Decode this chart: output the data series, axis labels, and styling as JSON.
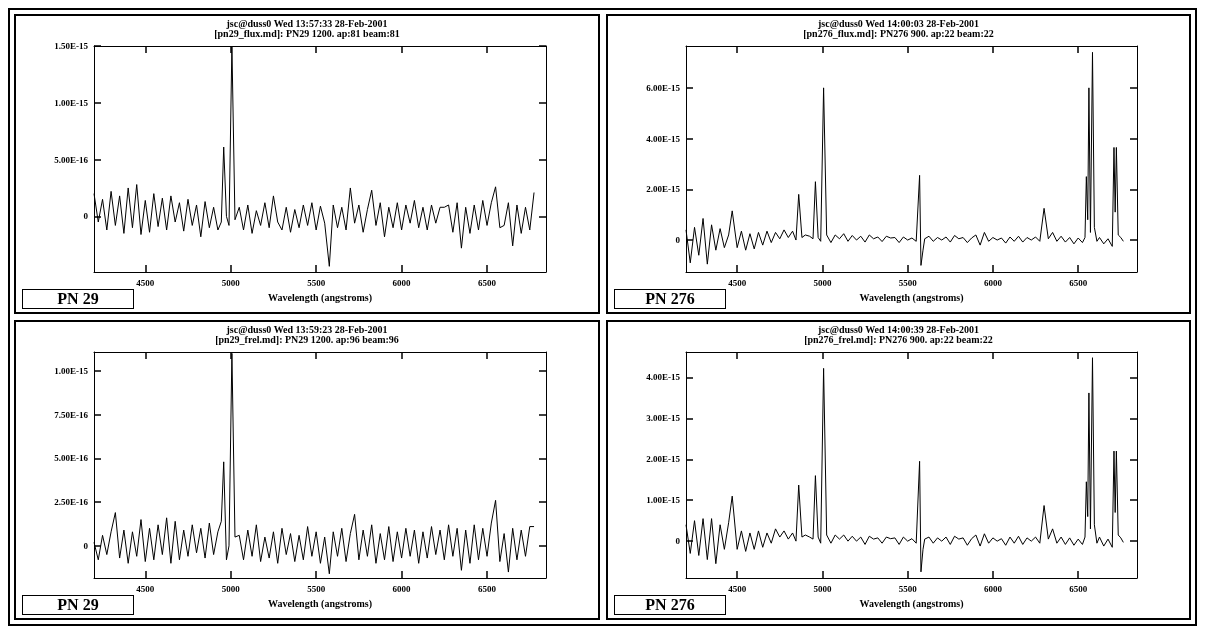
{
  "chart_data": [
    {
      "type": "line",
      "title": "jsc@duss0 Wed 13:57:33 28-Feb-2001",
      "subtitle": "[pn29_flux.md]: PN29 1200. ap:81 beam:81",
      "xlabel": "Wavelength (angstroms)",
      "annotations": [
        "PN 29"
      ],
      "color": "#000000",
      "xlim": [
        4200,
        6845
      ],
      "ylim": [
        -4.9e-16,
        1.5e-15
      ],
      "xticks": [
        4500,
        5000,
        5500,
        6000,
        6500
      ],
      "yticks": [
        {
          "value": 0,
          "label": "0"
        },
        {
          "value": 5e-16,
          "label": "5.00E-16"
        },
        {
          "value": 1e-15,
          "label": "1.00E-15"
        },
        {
          "value": 1.5e-15,
          "label": "1.50E-15"
        }
      ],
      "grid": false,
      "x": [
        4200,
        4225,
        4250,
        4275,
        4300,
        4325,
        4350,
        4375,
        4400,
        4425,
        4450,
        4475,
        4500,
        4525,
        4550,
        4575,
        4600,
        4625,
        4650,
        4675,
        4700,
        4725,
        4750,
        4775,
        4800,
        4825,
        4850,
        4875,
        4900,
        4925,
        4945,
        4959,
        4975,
        4990,
        5007,
        5025,
        5050,
        5075,
        5100,
        5125,
        5150,
        5175,
        5200,
        5225,
        5250,
        5275,
        5300,
        5325,
        5350,
        5375,
        5400,
        5425,
        5450,
        5475,
        5500,
        5525,
        5550,
        5577,
        5600,
        5625,
        5650,
        5675,
        5700,
        5725,
        5750,
        5775,
        5800,
        5825,
        5850,
        5875,
        5900,
        5925,
        5950,
        5975,
        6000,
        6025,
        6050,
        6075,
        6100,
        6125,
        6150,
        6175,
        6200,
        6225,
        6250,
        6275,
        6300,
        6325,
        6350,
        6375,
        6400,
        6425,
        6450,
        6475,
        6500,
        6525,
        6550,
        6575,
        6600,
        6625,
        6650,
        6675,
        6700,
        6725,
        6750,
        6775
      ],
      "values": [
        2e-16,
        -5e-17,
        1.5e-16,
        -1.2e-16,
        2.2e-16,
        -8e-17,
        1.8e-16,
        -1.5e-16,
        2.5e-16,
        -1e-16,
        2.8e-16,
        -1.6e-16,
        1.4e-16,
        -1.4e-16,
        2e-16,
        -9e-17,
        1.6e-16,
        -1.2e-16,
        1.8e-16,
        -5e-17,
        1.2e-16,
        -1.3e-16,
        1.5e-16,
        -8e-17,
        1e-16,
        -1.8e-16,
        1.3e-16,
        -1e-16,
        8e-17,
        -1.2e-16,
        -5e-17,
        6.1e-16,
        0,
        -8e-17,
        1.5e-15,
        -3e-17,
        8e-17,
        -1.2e-16,
        1e-16,
        -1.5e-16,
        5e-17,
        -8e-17,
        1.2e-16,
        -1e-16,
        1.8e-16,
        -5e-17,
        -1.2e-16,
        8e-17,
        -1.4e-16,
        6e-17,
        -1e-16,
        1e-16,
        -8e-17,
        1.2e-16,
        -1.2e-16,
        9e-17,
        -6e-17,
        -4.4e-16,
        1e-16,
        -1e-16,
        8e-17,
        -1.2e-16,
        2.5e-16,
        -6e-17,
        1e-16,
        -1.4e-16,
        6e-17,
        2.3e-16,
        -8e-17,
        1.2e-16,
        -1.8e-16,
        8e-17,
        -1e-16,
        1.2e-16,
        -1.2e-16,
        1e-16,
        -6e-17,
        1.4e-16,
        -1e-16,
        8e-17,
        -1.2e-16,
        1e-16,
        -6e-17,
        8e-17,
        8e-17,
        1e-16,
        -1.4e-16,
        1.2e-16,
        -2.8e-16,
        8e-17,
        -1.5e-16,
        1e-16,
        -1.2e-16,
        1.4e-16,
        -8e-17,
        1.2e-16,
        2.6e-16,
        -1e-16,
        -8e-17,
        1.2e-16,
        -2.6e-16,
        1e-16,
        -1.5e-16,
        8e-17,
        -1.2e-16,
        2.1e-16
      ]
    },
    {
      "type": "line",
      "title": "jsc@duss0 Wed 14:00:03 28-Feb-2001",
      "subtitle": "[pn276_flux.md]: PN276 900. ap:22 beam:22",
      "xlabel": "Wavelength (angstroms)",
      "annotations": [
        "PN 276"
      ],
      "color": "#000000",
      "xlim": [
        4200,
        6845
      ],
      "ylim": [
        -1.26e-15,
        7.65e-15
      ],
      "xticks": [
        4500,
        5000,
        5500,
        6000,
        6500
      ],
      "yticks": [
        {
          "value": 0,
          "label": "0"
        },
        {
          "value": 2e-15,
          "label": "2.00E-15"
        },
        {
          "value": 4e-15,
          "label": "4.00E-15"
        },
        {
          "value": 6e-15,
          "label": "6.00E-15"
        }
      ],
      "grid": false,
      "x": [
        4200,
        4225,
        4250,
        4275,
        4300,
        4325,
        4350,
        4375,
        4400,
        4425,
        4450,
        4471,
        4500,
        4525,
        4550,
        4575,
        4600,
        4625,
        4650,
        4675,
        4700,
        4725,
        4750,
        4775,
        4800,
        4825,
        4845,
        4861,
        4880,
        4900,
        4925,
        4945,
        4959,
        4975,
        4990,
        5007,
        5025,
        5050,
        5075,
        5100,
        5125,
        5150,
        5175,
        5200,
        5225,
        5250,
        5275,
        5300,
        5325,
        5350,
        5375,
        5400,
        5425,
        5450,
        5475,
        5500,
        5525,
        5550,
        5570,
        5578,
        5590,
        5600,
        5625,
        5650,
        5675,
        5700,
        5725,
        5750,
        5775,
        5800,
        5825,
        5850,
        5875,
        5900,
        5925,
        5950,
        5975,
        6000,
        6025,
        6050,
        6075,
        6100,
        6125,
        6150,
        6175,
        6200,
        6225,
        6250,
        6275,
        6300,
        6325,
        6350,
        6375,
        6400,
        6425,
        6450,
        6475,
        6500,
        6525,
        6540,
        6548,
        6556,
        6563,
        6572,
        6584,
        6595,
        6610,
        6625,
        6650,
        6675,
        6700,
        6710,
        6717,
        6724,
        6735,
        6750,
        6765
      ],
      "values": [
        4e-16,
        -9e-16,
        5e-16,
        -6e-16,
        8.5e-16,
        -9.5e-16,
        6e-16,
        -4e-16,
        4.5e-16,
        -3e-16,
        2e-16,
        1.15e-15,
        -3e-16,
        3.5e-16,
        -4e-16,
        2.5e-16,
        -3.5e-16,
        3e-16,
        -2e-16,
        3.5e-16,
        -1e-16,
        3e-16,
        5e-17,
        4e-16,
        1e-16,
        3.5e-16,
        0,
        1.8e-15,
        1e-16,
        2e-16,
        1.5e-16,
        5e-17,
        2.3e-15,
        1e-16,
        -5e-17,
        6e-15,
        2e-16,
        -1e-16,
        2e-16,
        5e-17,
        2.5e-16,
        -5e-17,
        1.8e-16,
        0,
        1.5e-16,
        -8e-17,
        2e-16,
        5e-17,
        1.2e-16,
        -6e-17,
        1.5e-16,
        8e-17,
        1e-16,
        -1e-16,
        1.2e-16,
        0,
        8e-17,
        -5e-17,
        2.55e-15,
        -1e-15,
        -4e-16,
        5e-17,
        1.5e-16,
        -5e-17,
        1e-16,
        0,
        1.2e-16,
        -8e-17,
        1.8e-16,
        5e-17,
        1e-16,
        -1e-16,
        8e-17,
        2e-16,
        -2e-16,
        3e-16,
        -5e-17,
        1e-16,
        0,
        8e-17,
        -1.2e-16,
        1.2e-16,
        -5e-17,
        1.5e-16,
        -8e-17,
        1e-16,
        0,
        1.2e-16,
        -5e-17,
        1.25e-15,
        5e-17,
        3e-16,
        -5e-17,
        1.5e-16,
        -8e-17,
        1e-16,
        -1.5e-16,
        8e-17,
        -1e-16,
        1e-16,
        2.5e-15,
        8e-16,
        6e-15,
        3e-16,
        7.4e-15,
        5e-16,
        -5e-17,
        1e-16,
        -1.5e-16,
        5e-17,
        -2.5e-16,
        3.65e-15,
        1.1e-15,
        3.65e-15,
        2e-16,
        1e-16,
        -5e-17
      ]
    },
    {
      "type": "line",
      "title": "jsc@duss0 Wed 13:59:23 28-Feb-2001",
      "subtitle": "[pn29_frel.md]: PN29 1200. ap:96 beam:96",
      "xlabel": "Wavelength (angstroms)",
      "annotations": [
        "PN 29"
      ],
      "color": "#000000",
      "xlim": [
        4200,
        6845
      ],
      "ylim": [
        -1.84e-16,
        1.108e-15
      ],
      "xticks": [
        4500,
        5000,
        5500,
        6000,
        6500
      ],
      "yticks": [
        {
          "value": 0,
          "label": "0"
        },
        {
          "value": 2.5e-16,
          "label": "2.50E-16"
        },
        {
          "value": 5e-16,
          "label": "5.00E-16"
        },
        {
          "value": 7.5e-16,
          "label": "7.50E-16"
        },
        {
          "value": 1e-15,
          "label": "1.00E-15"
        }
      ],
      "grid": false,
      "x": [
        4200,
        4225,
        4250,
        4275,
        4300,
        4325,
        4350,
        4375,
        4400,
        4425,
        4450,
        4475,
        4500,
        4525,
        4550,
        4575,
        4600,
        4625,
        4650,
        4675,
        4700,
        4725,
        4750,
        4775,
        4800,
        4825,
        4850,
        4875,
        4900,
        4925,
        4945,
        4959,
        4975,
        4990,
        5007,
        5025,
        5050,
        5075,
        5100,
        5125,
        5150,
        5175,
        5200,
        5225,
        5250,
        5275,
        5300,
        5325,
        5350,
        5375,
        5400,
        5425,
        5450,
        5475,
        5500,
        5525,
        5550,
        5577,
        5600,
        5625,
        5650,
        5675,
        5700,
        5725,
        5750,
        5775,
        5800,
        5825,
        5850,
        5875,
        5900,
        5925,
        5950,
        5975,
        6000,
        6025,
        6050,
        6075,
        6100,
        6125,
        6150,
        6175,
        6200,
        6225,
        6250,
        6275,
        6300,
        6325,
        6350,
        6375,
        6400,
        6425,
        6450,
        6475,
        6500,
        6525,
        6550,
        6575,
        6600,
        6625,
        6650,
        6675,
        6700,
        6725,
        6750,
        6775
      ],
      "values": [
        2e-17,
        -8e-17,
        6e-17,
        -5e-17,
        8e-17,
        1.9e-16,
        -7e-17,
        9e-17,
        -1e-16,
        8e-17,
        -6e-17,
        1.5e-16,
        -9e-17,
        1e-16,
        -8e-17,
        1.2e-16,
        -5e-17,
        1.6e-16,
        -1e-16,
        1.4e-16,
        -8e-17,
        9e-17,
        -6e-17,
        1.2e-16,
        -4e-17,
        1e-16,
        -7e-17,
        1.3e-16,
        -5e-17,
        8e-17,
        1.4e-16,
        4.8e-16,
        -8e-17,
        0,
        1.1e-15,
        5e-17,
        6e-17,
        -8e-17,
        9e-17,
        -6e-17,
        1.2e-16,
        -9e-17,
        5e-17,
        -7e-17,
        8e-17,
        -1e-16,
        1e-16,
        -5e-17,
        7e-17,
        -9e-17,
        6e-17,
        -8e-17,
        1.1e-16,
        -6e-17,
        8e-17,
        -1e-16,
        5e-17,
        -1.6e-16,
        8e-17,
        -6e-17,
        1e-16,
        -9e-17,
        7e-17,
        1.8e-16,
        -8e-17,
        9e-17,
        -6e-17,
        1.2e-16,
        -1e-16,
        7e-17,
        -8e-17,
        1.1e-16,
        -9e-17,
        8e-17,
        -7e-17,
        1e-16,
        -6e-17,
        9e-17,
        -1e-16,
        8e-17,
        -7e-17,
        1.1e-16,
        -5e-17,
        9e-17,
        -8e-17,
        1.2e-16,
        -6e-17,
        1e-16,
        -1.4e-16,
        9e-17,
        -1e-16,
        1.2e-16,
        -8e-17,
        1e-16,
        -6e-17,
        1.3e-16,
        2.6e-16,
        -9e-17,
        7e-17,
        -1.5e-16,
        1e-16,
        -8e-17,
        9e-17,
        -6e-17,
        1.1e-16,
        1.1e-16
      ]
    },
    {
      "type": "line",
      "title": "jsc@duss0 Wed 14:00:39 28-Feb-2001",
      "subtitle": "[pn276_frel.md]: PN276 900. ap:22 beam:22",
      "xlabel": "Wavelength (angstroms)",
      "annotations": [
        "PN 276"
      ],
      "color": "#000000",
      "xlim": [
        4200,
        6845
      ],
      "ylim": [
        -9e-16,
        4.62e-15
      ],
      "xticks": [
        4500,
        5000,
        5500,
        6000,
        6500
      ],
      "yticks": [
        {
          "value": 0,
          "label": "0"
        },
        {
          "value": 1e-15,
          "label": "1.00E-15"
        },
        {
          "value": 2e-15,
          "label": "2.00E-15"
        },
        {
          "value": 3e-15,
          "label": "3.00E-15"
        },
        {
          "value": 4e-15,
          "label": "4.00E-15"
        }
      ],
      "grid": false,
      "x": [
        4200,
        4225,
        4250,
        4275,
        4300,
        4325,
        4350,
        4375,
        4400,
        4425,
        4450,
        4471,
        4500,
        4525,
        4550,
        4575,
        4600,
        4625,
        4650,
        4675,
        4700,
        4725,
        4750,
        4775,
        4800,
        4825,
        4845,
        4861,
        4880,
        4900,
        4925,
        4945,
        4959,
        4975,
        4990,
        5007,
        5025,
        5050,
        5075,
        5100,
        5125,
        5150,
        5175,
        5200,
        5225,
        5250,
        5275,
        5300,
        5325,
        5350,
        5375,
        5400,
        5425,
        5450,
        5475,
        5500,
        5525,
        5550,
        5570,
        5578,
        5590,
        5600,
        5625,
        5650,
        5675,
        5700,
        5725,
        5750,
        5775,
        5800,
        5825,
        5850,
        5875,
        5900,
        5925,
        5950,
        5975,
        6000,
        6025,
        6050,
        6075,
        6100,
        6125,
        6150,
        6175,
        6200,
        6225,
        6250,
        6275,
        6300,
        6325,
        6350,
        6375,
        6400,
        6425,
        6450,
        6475,
        6500,
        6525,
        6540,
        6548,
        6556,
        6563,
        6572,
        6584,
        6595,
        6610,
        6625,
        6650,
        6675,
        6700,
        6710,
        6717,
        6724,
        6735,
        6750,
        6765
      ],
      "values": [
        4e-16,
        -3e-16,
        5e-16,
        -3.5e-16,
        5.5e-16,
        -4.5e-16,
        5.5e-16,
        -5.5e-16,
        4e-16,
        -2e-16,
        4.5e-16,
        1.1e-15,
        -2e-16,
        2.5e-16,
        -2.5e-16,
        2e-16,
        -2e-16,
        2.5e-16,
        -1.5e-16,
        2e-16,
        -5e-17,
        3e-16,
        1e-16,
        2.5e-16,
        5e-17,
        2e-16,
        0,
        1.37e-15,
        1e-16,
        1.5e-16,
        1e-16,
        5e-17,
        1.6e-15,
        1e-16,
        -5e-17,
        4.22e-15,
        1.5e-16,
        -5e-17,
        1.5e-16,
        5e-17,
        1.5e-16,
        0,
        1.2e-16,
        0,
        1e-16,
        -8e-17,
        1.2e-16,
        5e-17,
        8e-17,
        -5e-17,
        1e-16,
        6e-17,
        8e-17,
        -8e-17,
        1e-16,
        0,
        6e-17,
        -5e-17,
        1.95e-15,
        -7.5e-16,
        -2e-16,
        5e-17,
        1e-16,
        -5e-17,
        8e-17,
        0,
        1e-16,
        -8e-17,
        1.2e-16,
        5e-17,
        8e-17,
        -1e-16,
        6e-17,
        1.5e-16,
        -1.2e-16,
        1.8e-16,
        -5e-17,
        8e-17,
        0,
        6e-17,
        -1e-16,
        1e-16,
        -5e-17,
        1.2e-16,
        -8e-17,
        8e-17,
        0,
        1e-16,
        -5e-17,
        8.7e-16,
        5e-17,
        3e-16,
        -5e-17,
        1e-16,
        -8e-17,
        8e-17,
        -1e-16,
        5e-17,
        -8e-17,
        1e-16,
        1.45e-15,
        6e-16,
        3.62e-15,
        3e-16,
        4.48e-15,
        4e-16,
        -5e-17,
        1e-16,
        -1.2e-16,
        5e-17,
        -1.5e-16,
        2.2e-15,
        7e-16,
        2.2e-15,
        1.5e-16,
        8e-17,
        -3e-17
      ]
    }
  ]
}
